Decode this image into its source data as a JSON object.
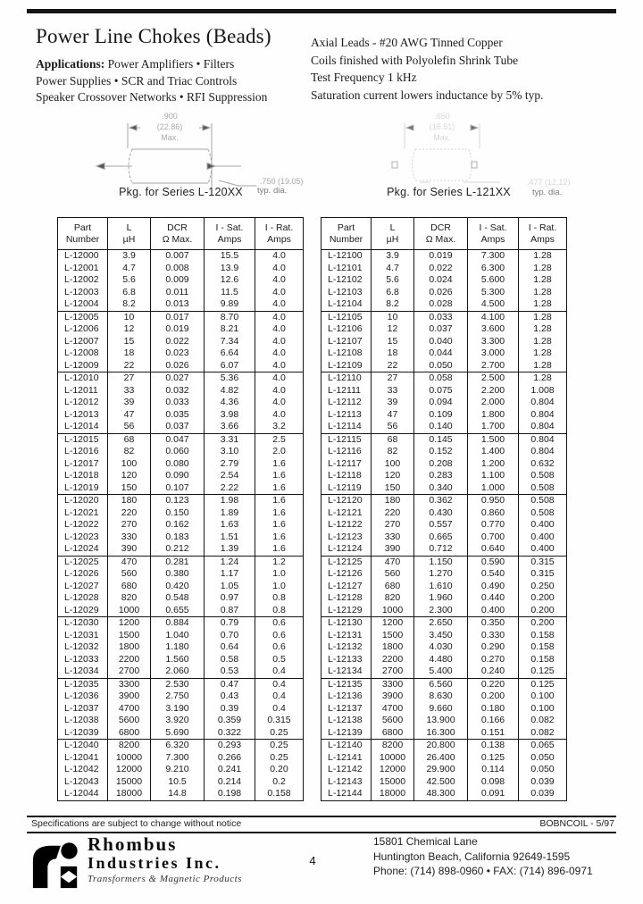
{
  "header": {
    "title": "Power Line Chokes (Beads)",
    "applications_label": "Applications:",
    "applications_line1": " Power Amplifiers • Filters",
    "applications_line2": "Power Supplies • SCR and Triac Controls",
    "applications_line3": "Speaker Crossover Networks • RFI Suppression",
    "specs": [
      "Axial Leads - #20 AWG Tinned Copper",
      "Coils finished with Polyolefin Shrink Tube",
      "Test Frequency 1 kHz",
      "Saturation current lowers inductance by 5% typ."
    ]
  },
  "diagrams": {
    "left": {
      "caption": "Pkg. for Series L-120XX",
      "dim_top": ".900",
      "dim_top_mm": "(22.86)",
      "dim_top_note": "Max.",
      "dim_dia": ".750  (19.05)",
      "dim_dia_note": "typ. dia."
    },
    "right": {
      "caption": "Pkg. for Series L-121XX",
      "dim_top": ".650",
      "dim_top_mm": "(16.51)",
      "dim_top_note": "Max.",
      "dim_dia": ".477  (12.12)",
      "dim_dia_note": "typ. dia."
    }
  },
  "tables": {
    "headers": {
      "col1a": "Part",
      "col1b": "Number",
      "col2a": "L",
      "col2b": "µH",
      "col3a": "DCR",
      "col3b": "Ω Max.",
      "col4a": "I - Sat.",
      "col4b": "Amps",
      "col5a": "I - Rat.",
      "col5b": "Amps"
    },
    "left_rows": [
      [
        "L-12000",
        "3.9",
        "0.007",
        "15.5",
        "4.0"
      ],
      [
        "L-12001",
        "4.7",
        "0.008",
        "13.9",
        "4.0"
      ],
      [
        "L-12002",
        "5.6",
        "0.009",
        "12.6",
        "4.0"
      ],
      [
        "L-12003",
        "6.8",
        "0.011",
        "11.5",
        "4.0"
      ],
      [
        "L-12004",
        "8.2",
        "0.013",
        "9.89",
        "4.0"
      ],
      [
        "L-12005",
        "10",
        "0.017",
        "8.70",
        "4.0"
      ],
      [
        "L-12006",
        "12",
        "0.019",
        "8.21",
        "4.0"
      ],
      [
        "L-12007",
        "15",
        "0.022",
        "7.34",
        "4.0"
      ],
      [
        "L-12008",
        "18",
        "0.023",
        "6.64",
        "4.0"
      ],
      [
        "L-12009",
        "22",
        "0.026",
        "6.07",
        "4.0"
      ],
      [
        "L-12010",
        "27",
        "0.027",
        "5.36",
        "4.0"
      ],
      [
        "L-12011",
        "33",
        "0.032",
        "4.82",
        "4.0"
      ],
      [
        "L-12012",
        "39",
        "0.033",
        "4.36",
        "4.0"
      ],
      [
        "L-12013",
        "47",
        "0.035",
        "3.98",
        "4.0"
      ],
      [
        "L-12014",
        "56",
        "0.037",
        "3.66",
        "3.2"
      ],
      [
        "L-12015",
        "68",
        "0.047",
        "3.31",
        "2.5"
      ],
      [
        "L-12016",
        "82",
        "0.060",
        "3.10",
        "2.0"
      ],
      [
        "L-12017",
        "100",
        "0.080",
        "2.79",
        "1.6"
      ],
      [
        "L-12018",
        "120",
        "0.090",
        "2.54",
        "1.6"
      ],
      [
        "L-12019",
        "150",
        "0.107",
        "2.22",
        "1.6"
      ],
      [
        "L-12020",
        "180",
        "0.123",
        "1.98",
        "1.6"
      ],
      [
        "L-12021",
        "220",
        "0.150",
        "1.89",
        "1.6"
      ],
      [
        "L-12022",
        "270",
        "0.162",
        "1.63",
        "1.6"
      ],
      [
        "L-12023",
        "330",
        "0.183",
        "1.51",
        "1.6"
      ],
      [
        "L-12024",
        "390",
        "0.212",
        "1.39",
        "1.6"
      ],
      [
        "L-12025",
        "470",
        "0.281",
        "1.24",
        "1.2"
      ],
      [
        "L-12026",
        "560",
        "0.380",
        "1.17",
        "1.0"
      ],
      [
        "L-12027",
        "680",
        "0.420",
        "1.05",
        "1.0"
      ],
      [
        "L-12028",
        "820",
        "0.548",
        "0.97",
        "0.8"
      ],
      [
        "L-12029",
        "1000",
        "0.655",
        "0.87",
        "0.8"
      ],
      [
        "L-12030",
        "1200",
        "0.884",
        "0.79",
        "0.6"
      ],
      [
        "L-12031",
        "1500",
        "1.040",
        "0.70",
        "0.6"
      ],
      [
        "L-12032",
        "1800",
        "1.180",
        "0.64",
        "0.6"
      ],
      [
        "L-12033",
        "2200",
        "1.560",
        "0.58",
        "0.5"
      ],
      [
        "L-12034",
        "2700",
        "2.060",
        "0.53",
        "0.4"
      ],
      [
        "L-12035",
        "3300",
        "2.530",
        "0.47",
        "0.4"
      ],
      [
        "L-12036",
        "3900",
        "2.750",
        "0.43",
        "0.4"
      ],
      [
        "L-12037",
        "4700",
        "3.190",
        "0.39",
        "0.4"
      ],
      [
        "L-12038",
        "5600",
        "3.920",
        "0.359",
        "0.315"
      ],
      [
        "L-12039",
        "6800",
        "5.690",
        "0.322",
        "0.25"
      ],
      [
        "L-12040",
        "8200",
        "6.320",
        "0.293",
        "0.25"
      ],
      [
        "L-12041",
        "10000",
        "7.300",
        "0.266",
        "0.25"
      ],
      [
        "L-12042",
        "12000",
        "9.210",
        "0.241",
        "0.20"
      ],
      [
        "L-12043",
        "15000",
        "10.5",
        "0.214",
        "0.2"
      ],
      [
        "L-12044",
        "18000",
        "14.8",
        "0.198",
        "0.158"
      ]
    ],
    "right_rows": [
      [
        "L-12100",
        "3.9",
        "0.019",
        "7.300",
        "1.28"
      ],
      [
        "L-12101",
        "4.7",
        "0.022",
        "6.300",
        "1.28"
      ],
      [
        "L-12102",
        "5.6",
        "0.024",
        "5.600",
        "1.28"
      ],
      [
        "L-12103",
        "6.8",
        "0.026",
        "5.300",
        "1.28"
      ],
      [
        "L-12104",
        "8.2",
        "0.028",
        "4.500",
        "1.28"
      ],
      [
        "L-12105",
        "10",
        "0.033",
        "4.100",
        "1.28"
      ],
      [
        "L-12106",
        "12",
        "0.037",
        "3.600",
        "1.28"
      ],
      [
        "L-12107",
        "15",
        "0.040",
        "3.300",
        "1.28"
      ],
      [
        "L-12108",
        "18",
        "0.044",
        "3.000",
        "1.28"
      ],
      [
        "L-12109",
        "22",
        "0.050",
        "2.700",
        "1.28"
      ],
      [
        "L-12110",
        "27",
        "0.058",
        "2.500",
        "1.28"
      ],
      [
        "L-12111",
        "33",
        "0.075",
        "2.200",
        "1.008"
      ],
      [
        "L-12112",
        "39",
        "0.094",
        "2.000",
        "0.804"
      ],
      [
        "L-12113",
        "47",
        "0.109",
        "1.800",
        "0.804"
      ],
      [
        "L-12114",
        "56",
        "0.140",
        "1.700",
        "0.804"
      ],
      [
        "L-12115",
        "68",
        "0.145",
        "1.500",
        "0.804"
      ],
      [
        "L-12116",
        "82",
        "0.152",
        "1.400",
        "0.804"
      ],
      [
        "L-12117",
        "100",
        "0.208",
        "1.200",
        "0.632"
      ],
      [
        "L-12118",
        "120",
        "0.283",
        "1.100",
        "0.508"
      ],
      [
        "L-12119",
        "150",
        "0.340",
        "1.000",
        "0.508"
      ],
      [
        "L-12120",
        "180",
        "0.362",
        "0.950",
        "0.508"
      ],
      [
        "L-12121",
        "220",
        "0.430",
        "0.860",
        "0.508"
      ],
      [
        "L-12122",
        "270",
        "0.557",
        "0.770",
        "0.400"
      ],
      [
        "L-12123",
        "330",
        "0.665",
        "0.700",
        "0.400"
      ],
      [
        "L-12124",
        "390",
        "0.712",
        "0.640",
        "0.400"
      ],
      [
        "L-12125",
        "470",
        "1.150",
        "0.590",
        "0.315"
      ],
      [
        "L-12126",
        "560",
        "1.270",
        "0.540",
        "0.315"
      ],
      [
        "L-12127",
        "680",
        "1.610",
        "0.490",
        "0.250"
      ],
      [
        "L-12128",
        "820",
        "1.960",
        "0.440",
        "0.200"
      ],
      [
        "L-12129",
        "1000",
        "2.300",
        "0.400",
        "0.200"
      ],
      [
        "L-12130",
        "1200",
        "2.650",
        "0.350",
        "0.200"
      ],
      [
        "L-12131",
        "1500",
        "3.450",
        "0.330",
        "0.158"
      ],
      [
        "L-12132",
        "1800",
        "4.030",
        "0.290",
        "0.158"
      ],
      [
        "L-12133",
        "2200",
        "4.480",
        "0.270",
        "0.158"
      ],
      [
        "L-12134",
        "2700",
        "5.400",
        "0.240",
        "0.125"
      ],
      [
        "L-12135",
        "3300",
        "6.560",
        "0.220",
        "0.125"
      ],
      [
        "L-12136",
        "3900",
        "8.630",
        "0.200",
        "0.100"
      ],
      [
        "L-12137",
        "4700",
        "9.660",
        "0.180",
        "0.100"
      ],
      [
        "L-12138",
        "5600",
        "13.900",
        "0.166",
        "0.082"
      ],
      [
        "L-12139",
        "6800",
        "16.300",
        "0.151",
        "0.082"
      ],
      [
        "L-12140",
        "8200",
        "20.800",
        "0.138",
        "0.065"
      ],
      [
        "L-12141",
        "10000",
        "26.400",
        "0.125",
        "0.050"
      ],
      [
        "L-12142",
        "12000",
        "29.900",
        "0.114",
        "0.050"
      ],
      [
        "L-12143",
        "15000",
        "42.500",
        "0.098",
        "0.039"
      ],
      [
        "L-12144",
        "18000",
        "48.300",
        "0.091",
        "0.039"
      ]
    ]
  },
  "footer": {
    "note": "Specifications are subject to change without notice",
    "doc_code": "BOBNCOIL - 5/97",
    "company_line1": "Rhombus",
    "company_line2": "Industries Inc.",
    "tagline": "Transformers & Magnetic Products",
    "page_number": "4",
    "address_line1": "15801 Chemical Lane",
    "address_line2": "Huntington Beach, California 92649-1595",
    "address_line3": "Phone:  (714) 898-0960  •  FAX:  (714) 896-0971"
  }
}
